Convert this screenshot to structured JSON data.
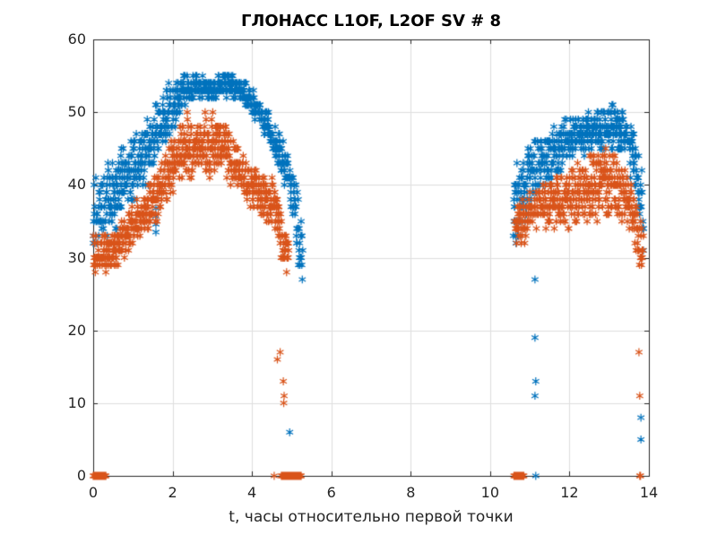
{
  "chart_data": {
    "type": "scatter",
    "title": "ГЛОНАСС L1OF, L2OF SV # 8",
    "xlabel": "t, часы относительно первой точки",
    "ylabel": "",
    "xlim": [
      0,
      14
    ],
    "ylim": [
      0,
      60
    ],
    "xticks": [
      0,
      2,
      4,
      6,
      8,
      10,
      12,
      14
    ],
    "yticks": [
      0,
      10,
      20,
      30,
      40,
      50,
      60
    ],
    "grid": true,
    "legend": "none",
    "marker": "asterisk",
    "y_quantization_db": 1,
    "axes_style": {
      "axis_color": "#262626",
      "grid_color": "#dedede",
      "background": "#ffffff",
      "box": true,
      "tick_dir": "in"
    },
    "series": [
      {
        "name": "L1OF",
        "color": "#0072bd",
        "arcs": [
          {
            "x_range": [
              0,
              5.28
            ],
            "dt": 0.006,
            "envelope": [
              [
                0.0,
                29.5,
                41.5
              ],
              [
                0.5,
                33,
                43.5
              ],
              [
                1.0,
                36.5,
                47
              ],
              [
                1.5,
                41,
                51
              ],
              [
                2.0,
                47,
                54.5
              ],
              [
                2.3,
                51,
                55.5
              ],
              [
                2.7,
                52,
                55
              ],
              [
                3.0,
                51.5,
                54.5
              ],
              [
                3.3,
                52,
                55.5
              ],
              [
                3.7,
                51,
                55
              ],
              [
                4.0,
                49.5,
                53.5
              ],
              [
                4.3,
                46.5,
                51
              ],
              [
                4.6,
                43,
                48
              ],
              [
                4.9,
                38.5,
                44.5
              ],
              [
                5.1,
                33,
                41
              ],
              [
                5.2,
                27,
                39
              ],
              [
                5.28,
                27,
                35
              ]
            ]
          },
          {
            "x_range": [
              10.58,
              13.88
            ],
            "dt": 0.006,
            "envelope": [
              [
                10.58,
                30,
                41
              ],
              [
                10.7,
                32,
                44
              ],
              [
                10.9,
                35,
                45.5
              ],
              [
                11.2,
                38,
                47
              ],
              [
                11.6,
                40.5,
                48.5
              ],
              [
                12.0,
                42.5,
                50
              ],
              [
                12.4,
                44,
                50.5
              ],
              [
                12.8,
                44.5,
                51
              ],
              [
                13.1,
                45,
                51
              ],
              [
                13.35,
                44,
                50.5
              ],
              [
                13.6,
                40,
                48
              ],
              [
                13.75,
                34,
                44.5
              ],
              [
                13.88,
                27.5,
                40
              ]
            ]
          }
        ],
        "outliers": [
          [
            1.58,
            33.5
          ],
          [
            1.58,
            34.6
          ],
          [
            1.58,
            35.7
          ],
          [
            1.58,
            36.8
          ],
          [
            1.58,
            38
          ],
          [
            4.95,
            6
          ],
          [
            11.13,
            27
          ],
          [
            11.13,
            19
          ],
          [
            11.15,
            13
          ],
          [
            11.13,
            11
          ],
          [
            13.8,
            8
          ],
          [
            13.8,
            5
          ]
        ],
        "zero_points": [
          [
            11.15,
            0
          ]
        ],
        "zero_clusters": []
      },
      {
        "name": "L2OF",
        "color": "#d95319",
        "arcs": [
          {
            "x_range": [
              0,
              4.93
            ],
            "dt": 0.006,
            "envelope": [
              [
                0.0,
                28,
                33.5
              ],
              [
                0.4,
                27.5,
                33
              ],
              [
                0.8,
                30,
                36.5
              ],
              [
                1.2,
                32.5,
                39
              ],
              [
                1.6,
                35,
                42
              ],
              [
                2.0,
                38.5,
                46.5
              ],
              [
                2.3,
                40,
                50.5
              ],
              [
                2.6,
                40.5,
                49
              ],
              [
                3.0,
                41,
                50.5
              ],
              [
                3.2,
                41,
                50.5
              ],
              [
                3.5,
                39.5,
                47
              ],
              [
                3.8,
                37.5,
                44.5
              ],
              [
                4.1,
                36,
                42.5
              ],
              [
                4.4,
                34.5,
                41
              ],
              [
                4.6,
                33,
                40.5
              ],
              [
                4.78,
                28,
                36
              ],
              [
                4.93,
                27,
                34
              ]
            ]
          },
          {
            "x_range": [
              10.62,
              13.87
            ],
            "dt": 0.006,
            "envelope": [
              [
                10.62,
                31,
                37.5
              ],
              [
                10.8,
                31.5,
                38.5
              ],
              [
                11.1,
                33,
                40
              ],
              [
                11.5,
                33.5,
                41
              ],
              [
                12.0,
                34,
                42.5
              ],
              [
                12.4,
                34.5,
                44
              ],
              [
                12.8,
                35,
                45.5
              ],
              [
                13.1,
                35.5,
                45
              ],
              [
                13.4,
                34.5,
                43
              ],
              [
                13.6,
                33,
                40
              ],
              [
                13.75,
                28,
                37
              ],
              [
                13.87,
                27,
                35
              ]
            ]
          }
        ],
        "outliers": [
          [
            4.64,
            16
          ],
          [
            4.71,
            17
          ],
          [
            4.79,
            13
          ],
          [
            4.81,
            11
          ],
          [
            4.8,
            10
          ],
          [
            13.75,
            17
          ],
          [
            13.77,
            11
          ]
        ],
        "zero_points": [
          [
            4.56,
            0
          ],
          [
            13.77,
            0
          ],
          [
            13.79,
            0
          ]
        ],
        "zero_clusters": [
          {
            "x_range": [
              0.0,
              0.32
            ],
            "n": 34
          },
          {
            "x_range": [
              4.74,
              5.24
            ],
            "n": 46
          },
          {
            "x_range": [
              10.6,
              10.85
            ],
            "n": 24
          }
        ]
      }
    ]
  }
}
